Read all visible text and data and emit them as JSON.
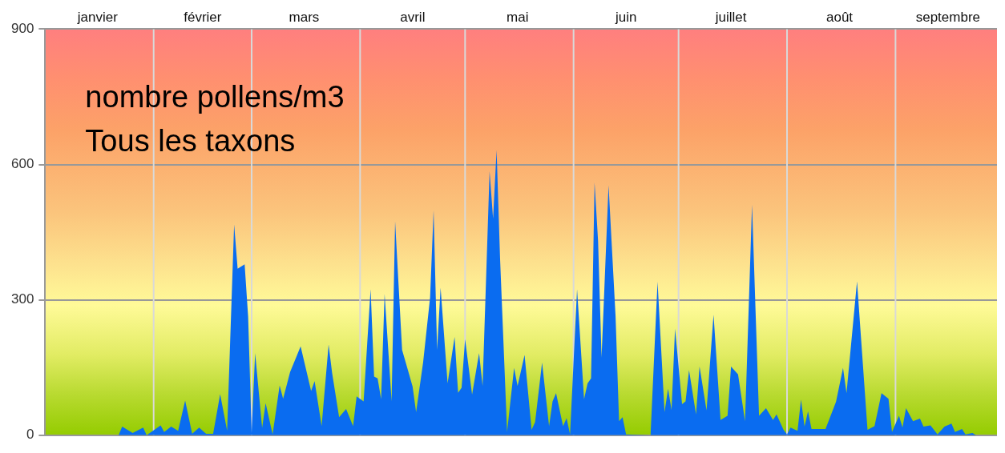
{
  "chart_data": {
    "type": "area",
    "annotations": [
      "nombre pollens/m3",
      "Tous les taxons"
    ],
    "x": [
      "--01-01",
      "--01-22",
      "--01-23",
      "--01-26",
      "--01-29",
      "--01-30",
      "--02-03",
      "--02-04",
      "--02-06",
      "--02-08",
      "--02-10",
      "--02-12",
      "--02-14",
      "--02-16",
      "--02-18",
      "--02-20",
      "--02-22",
      "--02-24",
      "--02-25",
      "--02-27",
      "--02-28",
      "--03-01",
      "--03-02",
      "--03-04",
      "--03-05",
      "--03-07",
      "--03-09",
      "--03-10",
      "--03-12",
      "--03-14",
      "--03-15",
      "--03-18",
      "--03-19",
      "--03-21",
      "--03-23",
      "--03-24",
      "--03-26",
      "--03-28",
      "--03-30",
      "--03-31",
      "--04-02",
      "--04-04",
      "--04-05",
      "--04-06",
      "--04-07",
      "--04-08",
      "--04-10",
      "--04-11",
      "--04-13",
      "--04-16",
      "--04-17",
      "--04-19",
      "--04-21",
      "--04-22",
      "--04-23",
      "--04-24",
      "--04-26",
      "--04-28",
      "--04-29",
      "--04-30",
      "--05-01",
      "--05-03",
      "--05-05",
      "--05-06",
      "--05-08",
      "--05-09",
      "--05-10",
      "--05-11",
      "--05-13",
      "--05-15",
      "--05-16",
      "--05-18",
      "--05-20",
      "--05-21",
      "--05-23",
      "--05-25",
      "--05-26",
      "--05-27",
      "--05-29",
      "--05-30",
      "--05-31",
      "--06-02",
      "--06-04",
      "--06-05",
      "--06-06",
      "--06-07",
      "--06-08",
      "--06-09",
      "--06-11",
      "--06-13",
      "--06-14",
      "--06-15",
      "--06-16",
      "--06-23",
      "--06-25",
      "--06-27",
      "--06-28",
      "--06-29",
      "--06-30",
      "--07-02",
      "--07-03",
      "--07-04",
      "--07-06",
      "--07-07",
      "--07-09",
      "--07-11",
      "--07-13",
      "--07-15",
      "--07-16",
      "--07-18",
      "--07-20",
      "--07-22",
      "--07-24",
      "--07-26",
      "--07-28",
      "--07-29",
      "--07-31",
      "--08-01",
      "--08-02",
      "--08-04",
      "--08-05",
      "--08-06",
      "--08-07",
      "--08-08",
      "--08-12",
      "--08-15",
      "--08-17",
      "--08-18",
      "--08-21",
      "--08-24",
      "--08-26",
      "--08-28",
      "--08-29",
      "--08-30",
      "--08-31",
      "--09-02",
      "--09-03",
      "--09-04",
      "--09-06",
      "--09-08",
      "--09-09",
      "--09-11",
      "--09-13",
      "--09-15",
      "--09-17",
      "--09-18",
      "--09-20",
      "--09-21",
      "--09-23",
      "--09-24"
    ],
    "series": [
      {
        "color": "#0a6cf0",
        "values": [
          0,
          0,
          19,
          5,
          17,
          0,
          22,
          7,
          19,
          10,
          77,
          3,
          17,
          3,
          3,
          91,
          10,
          467,
          369,
          379,
          263,
          5,
          182,
          16,
          71,
          2,
          110,
          81,
          140,
          178,
          197,
          98,
          120,
          20,
          201,
          138,
          40,
          58,
          20,
          86,
          75,
          324,
          130,
          126,
          80,
          313,
          75,
          474,
          189,
          108,
          51,
          161,
          305,
          498,
          189,
          327,
          115,
          218,
          94,
          105,
          213,
          90,
          182,
          109,
          585,
          480,
          632,
          391,
          7,
          149,
          109,
          178,
          12,
          29,
          161,
          20,
          75,
          93,
          20,
          38,
          2,
          324,
          80,
          115,
          126,
          560,
          431,
          172,
          554,
          264,
          31,
          40,
          2,
          0,
          340,
          51,
          103,
          56,
          236,
          69,
          75,
          144,
          46,
          152,
          55,
          267,
          34,
          43,
          152,
          135,
          31,
          511,
          43,
          60,
          34,
          46,
          12,
          2,
          17,
          10,
          79,
          19,
          53,
          14,
          14,
          74,
          149,
          93,
          341,
          12,
          20,
          93,
          87,
          81,
          7,
          43,
          17,
          60,
          31,
          37,
          19,
          22,
          2,
          19,
          26,
          7,
          14,
          2,
          5,
          0
        ]
      }
    ],
    "xlim": [
      "--01-01",
      "--09-30"
    ],
    "ref_lines": [
      {
        "axis": "x",
        "value": "--02-01",
        "color": "#d9d9d9"
      },
      {
        "axis": "x",
        "value": "--03-01",
        "color": "#d9d9d9"
      },
      {
        "axis": "x",
        "value": "--04-01",
        "color": "#d9d9d9"
      },
      {
        "axis": "x",
        "value": "--05-01",
        "color": "#d9d9d9"
      },
      {
        "axis": "x",
        "value": "--06-01",
        "color": "#d9d9d9"
      },
      {
        "axis": "x",
        "value": "--07-01",
        "color": "#d9d9d9"
      },
      {
        "axis": "x",
        "value": "--08-01",
        "color": "#d9d9d9"
      },
      {
        "axis": "x",
        "value": "--09-01",
        "color": "#d9d9d9"
      }
    ],
    "xticks": [
      {
        "value": "--01-16",
        "label": "janvier"
      },
      {
        "value": "--02-15",
        "label": "février"
      },
      {
        "value": "--03-16",
        "label": "mars"
      },
      {
        "value": "--04-16",
        "label": "avril"
      },
      {
        "value": "--05-16",
        "label": "mai"
      },
      {
        "value": "--06-16",
        "label": "juin"
      },
      {
        "value": "--07-16",
        "label": "juillet"
      },
      {
        "value": "--08-16",
        "label": "août"
      },
      {
        "value": "--09-16",
        "label": "septembre"
      }
    ],
    "ylim": [
      0,
      900
    ],
    "yticks": [
      0,
      300,
      600,
      900
    ],
    "grid": "y"
  }
}
